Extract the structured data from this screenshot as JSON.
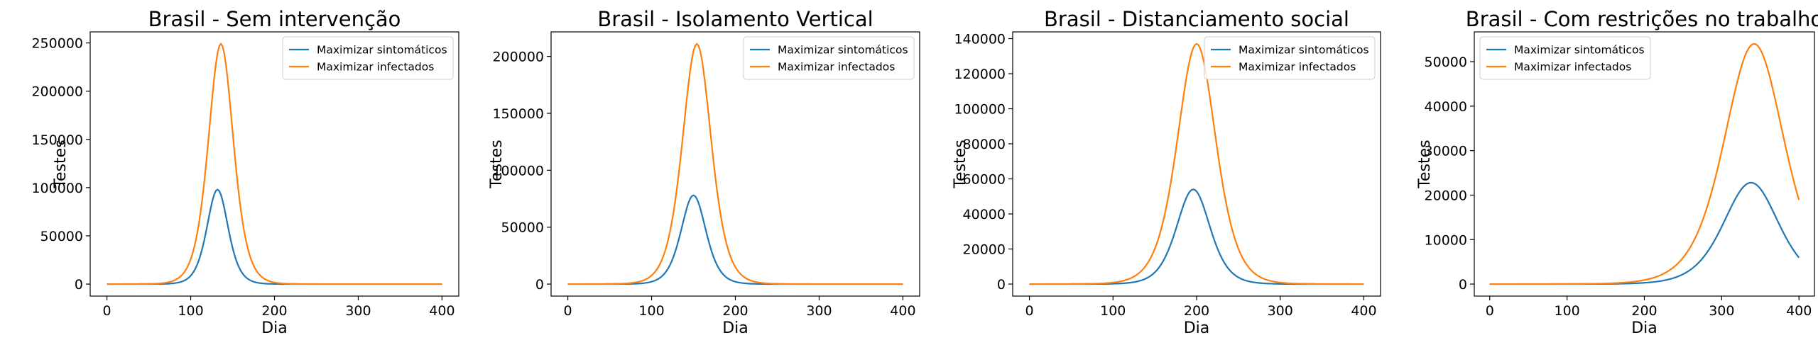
{
  "chart_data": [
    {
      "type": "line",
      "title": "Brasil - Sem intervenção",
      "xlabel": "Dia",
      "ylabel": "Testes",
      "xlim": [
        -20,
        420
      ],
      "ylim": [
        -12450,
        261450
      ],
      "xticks": [
        0,
        100,
        200,
        300,
        400
      ],
      "yticks": [
        0,
        50000,
        100000,
        150000,
        200000,
        250000
      ],
      "ytick_labels": [
        "0",
        "50000",
        "100000",
        "150000",
        "200000",
        "250000"
      ],
      "legend_loc": "upper right",
      "series": [
        {
          "name": "Maximizar sintomáticos",
          "color": "#1f77b4",
          "peak_day": 132,
          "peak_value": 98000,
          "width": 17
        },
        {
          "name": "Maximizar infectados",
          "color": "#ff7f0e",
          "peak_day": 136,
          "peak_value": 249000,
          "width": 20
        }
      ]
    },
    {
      "type": "line",
      "title": "Brasil - Isolamento Vertical",
      "xlabel": "Dia",
      "ylabel": "Testes",
      "xlim": [
        -20,
        420
      ],
      "ylim": [
        -10550,
        221550
      ],
      "xticks": [
        0,
        100,
        200,
        300,
        400
      ],
      "yticks": [
        0,
        50000,
        100000,
        150000,
        200000
      ],
      "ytick_labels": [
        "0",
        "50000",
        "100000",
        "150000",
        "200000"
      ],
      "legend_loc": "upper right",
      "series": [
        {
          "name": "Maximizar sintomáticos",
          "color": "#1f77b4",
          "peak_day": 150,
          "peak_value": 78000,
          "width": 20
        },
        {
          "name": "Maximizar infectados",
          "color": "#ff7f0e",
          "peak_day": 154,
          "peak_value": 211000,
          "width": 23
        }
      ]
    },
    {
      "type": "line",
      "title": "Brasil - Distanciamento social",
      "xlabel": "Dia",
      "ylabel": "Testes",
      "xlim": [
        -20,
        420
      ],
      "ylim": [
        -6850,
        143850
      ],
      "xticks": [
        0,
        100,
        200,
        300,
        400
      ],
      "yticks": [
        0,
        20000,
        40000,
        60000,
        80000,
        100000,
        120000,
        140000
      ],
      "ytick_labels": [
        "0",
        "20000",
        "40000",
        "60000",
        "80000",
        "100000",
        "120000",
        "140000"
      ],
      "legend_loc": "upper right",
      "series": [
        {
          "name": "Maximizar sintomáticos",
          "color": "#1f77b4",
          "peak_day": 196,
          "peak_value": 54000,
          "width": 27
        },
        {
          "name": "Maximizar infectados",
          "color": "#ff7f0e",
          "peak_day": 200,
          "peak_value": 137000,
          "width": 31
        }
      ]
    },
    {
      "type": "line",
      "title": "Brasil - Com restrições no trabalho",
      "xlabel": "Dia",
      "ylabel": "Testes",
      "xlim": [
        -20,
        420
      ],
      "ylim": [
        -2700,
        56700
      ],
      "xticks": [
        0,
        100,
        200,
        300,
        400
      ],
      "yticks": [
        0,
        10000,
        20000,
        30000,
        40000,
        50000
      ],
      "ytick_labels": [
        "0",
        "10000",
        "20000",
        "30000",
        "40000",
        "50000"
      ],
      "legend_loc": "upper left",
      "series": [
        {
          "name": "Maximizar sintomáticos",
          "color": "#1f77b4",
          "peak_day": 338,
          "peak_value": 22800,
          "width": 48
        },
        {
          "name": "Maximizar infectados",
          "color": "#ff7f0e",
          "peak_day": 342,
          "peak_value": 54000,
          "width": 52
        }
      ]
    }
  ]
}
